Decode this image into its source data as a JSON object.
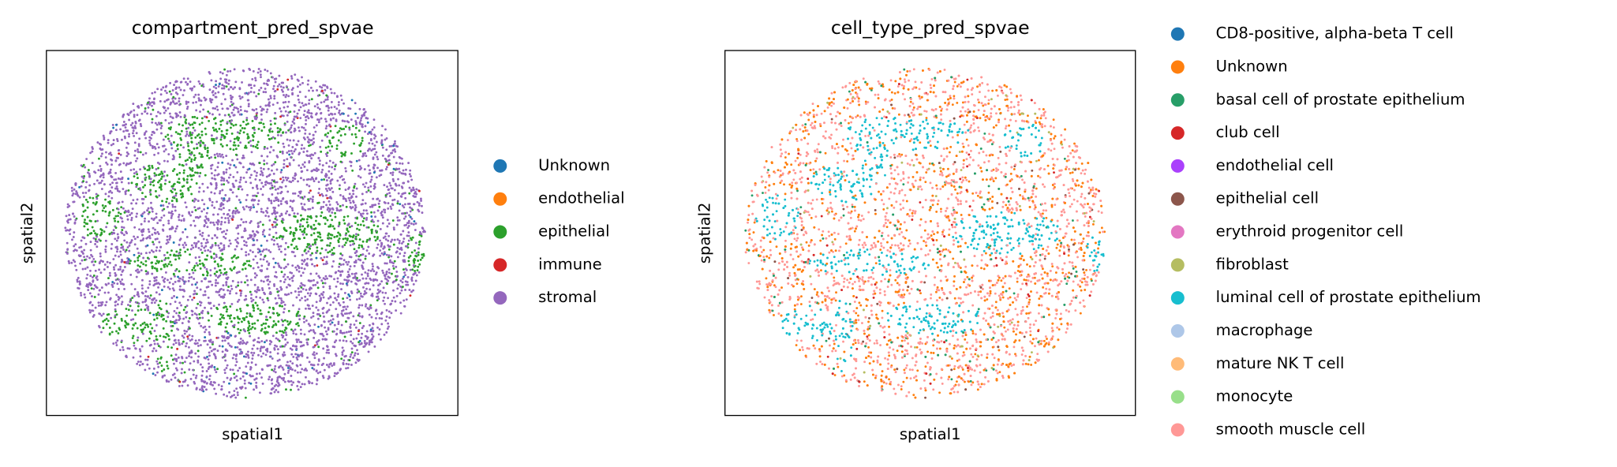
{
  "chart_data": [
    {
      "type": "scatter",
      "title": "compartment_pred_spvae",
      "xlabel": "spatial1",
      "ylabel": "spatial2",
      "categories": [
        "Unknown",
        "endothelial",
        "epithelial",
        "immune",
        "stromal"
      ],
      "colors": [
        "#1f77b4",
        "#ff7f0e",
        "#2ca02c",
        "#d62728",
        "#9467bd"
      ]
    },
    {
      "type": "scatter",
      "title": "cell_type_pred_spvae",
      "xlabel": "spatial1",
      "ylabel": "spatial2",
      "categories": [
        "CD8-positive, alpha-beta T cell",
        "Unknown",
        "basal cell of prostate epithelium",
        "club cell",
        "endothelial cell",
        "epithelial cell",
        "erythroid progenitor cell",
        "fibroblast",
        "luminal cell of prostate epithelium",
        "macrophage",
        "mature NK T cell",
        "monocyte",
        "smooth muscle cell"
      ],
      "colors": [
        "#1f77b4",
        "#ff7f0e",
        "#279e68",
        "#d62728",
        "#aa40fc",
        "#8c564b",
        "#e377c2",
        "#b5bd61",
        "#17becf",
        "#aec7e8",
        "#ffbb78",
        "#98df8a",
        "#ff9896"
      ]
    }
  ]
}
